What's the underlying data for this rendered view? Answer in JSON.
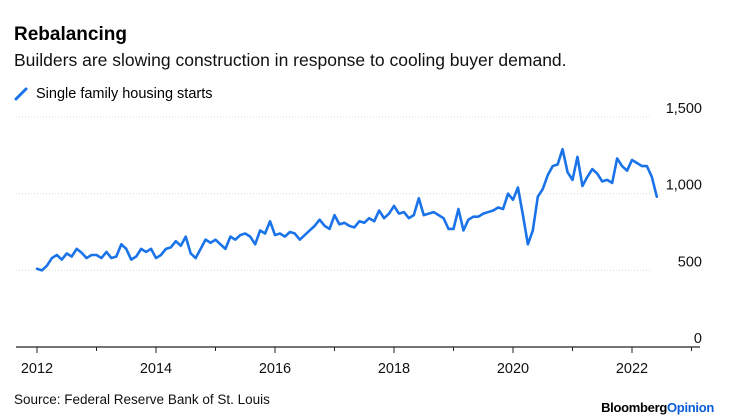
{
  "header": {
    "title": "Rebalancing",
    "subtitle": "Builders are slowing construction in response to cooling buyer demand."
  },
  "footer": {
    "source": "Source: Federal Reserve Bank of St. Louis",
    "brand_main": "Bloomberg",
    "brand_accent": "Opinion"
  },
  "colors": {
    "series": "#1a73e8",
    "grid": "#dcdcdc",
    "axis": "#222222",
    "brand_accent": "#0a5bd8"
  },
  "chart_data": {
    "type": "line",
    "title": "Rebalancing",
    "subtitle": "Builders are slowing construction in response to cooling buyer demand.",
    "xlabel": "",
    "ylabel": "",
    "x_range": [
      2011.75,
      2023.4
    ],
    "ylim": [
      0,
      1500
    ],
    "y_ticks": [
      0,
      500,
      1000,
      1500
    ],
    "y_tick_labels": [
      "0",
      "500",
      "1,000",
      "1,500"
    ],
    "x_ticks": [
      2012,
      2014,
      2016,
      2018,
      2020,
      2022
    ],
    "x_tick_labels": [
      "2012",
      "2014",
      "2016",
      "2018",
      "2020",
      "2022"
    ],
    "grid": "horizontal",
    "legend_position": "top-left",
    "series": [
      {
        "name": "Single family housing starts",
        "x": [
          2012.0,
          2012.083,
          2012.167,
          2012.25,
          2012.333,
          2012.417,
          2012.5,
          2012.583,
          2012.667,
          2012.75,
          2012.833,
          2012.917,
          2013.0,
          2013.083,
          2013.167,
          2013.25,
          2013.333,
          2013.417,
          2013.5,
          2013.583,
          2013.667,
          2013.75,
          2013.833,
          2013.917,
          2014.0,
          2014.083,
          2014.167,
          2014.25,
          2014.333,
          2014.417,
          2014.5,
          2014.583,
          2014.667,
          2014.75,
          2014.833,
          2014.917,
          2015.0,
          2015.083,
          2015.167,
          2015.25,
          2015.333,
          2015.417,
          2015.5,
          2015.583,
          2015.667,
          2015.75,
          2015.833,
          2015.917,
          2016.0,
          2016.083,
          2016.167,
          2016.25,
          2016.333,
          2016.417,
          2016.5,
          2016.583,
          2016.667,
          2016.75,
          2016.833,
          2016.917,
          2017.0,
          2017.083,
          2017.167,
          2017.25,
          2017.333,
          2017.417,
          2017.5,
          2017.583,
          2017.667,
          2017.75,
          2017.833,
          2017.917,
          2018.0,
          2018.083,
          2018.167,
          2018.25,
          2018.333,
          2018.417,
          2018.5,
          2018.583,
          2018.667,
          2018.75,
          2018.833,
          2018.917,
          2019.0,
          2019.083,
          2019.167,
          2019.25,
          2019.333,
          2019.417,
          2019.5,
          2019.583,
          2019.667,
          2019.75,
          2019.833,
          2019.917,
          2020.0,
          2020.083,
          2020.167,
          2020.25,
          2020.333,
          2020.417,
          2020.5,
          2020.583,
          2020.667,
          2020.75,
          2020.833,
          2020.917,
          2021.0,
          2021.083,
          2021.167,
          2021.25,
          2021.333,
          2021.417,
          2021.5,
          2021.583,
          2021.667,
          2021.75,
          2021.833,
          2021.917,
          2022.0,
          2022.083,
          2022.167,
          2022.25,
          2022.333,
          2022.417
        ],
        "values": [
          510,
          500,
          530,
          580,
          600,
          570,
          610,
          590,
          640,
          615,
          580,
          600,
          600,
          580,
          620,
          580,
          590,
          670,
          640,
          570,
          590,
          640,
          620,
          640,
          580,
          600,
          640,
          650,
          690,
          660,
          720,
          610,
          580,
          640,
          700,
          680,
          700,
          670,
          640,
          720,
          700,
          730,
          740,
          720,
          670,
          760,
          740,
          820,
          730,
          740,
          720,
          750,
          740,
          700,
          730,
          760,
          790,
          830,
          790,
          770,
          860,
          800,
          810,
          790,
          780,
          820,
          810,
          840,
          820,
          890,
          840,
          870,
          920,
          870,
          880,
          840,
          860,
          970,
          860,
          870,
          880,
          860,
          840,
          770,
          770,
          900,
          760,
          830,
          850,
          850,
          870,
          880,
          890,
          910,
          900,
          1000,
          960,
          1040,
          860,
          670,
          760,
          980,
          1030,
          1120,
          1180,
          1190,
          1290,
          1140,
          1090,
          1240,
          1050,
          1110,
          1160,
          1130,
          1080,
          1090,
          1070,
          1230,
          1180,
          1150,
          1220,
          1200,
          1180,
          1180,
          1110,
          980
        ]
      }
    ]
  }
}
